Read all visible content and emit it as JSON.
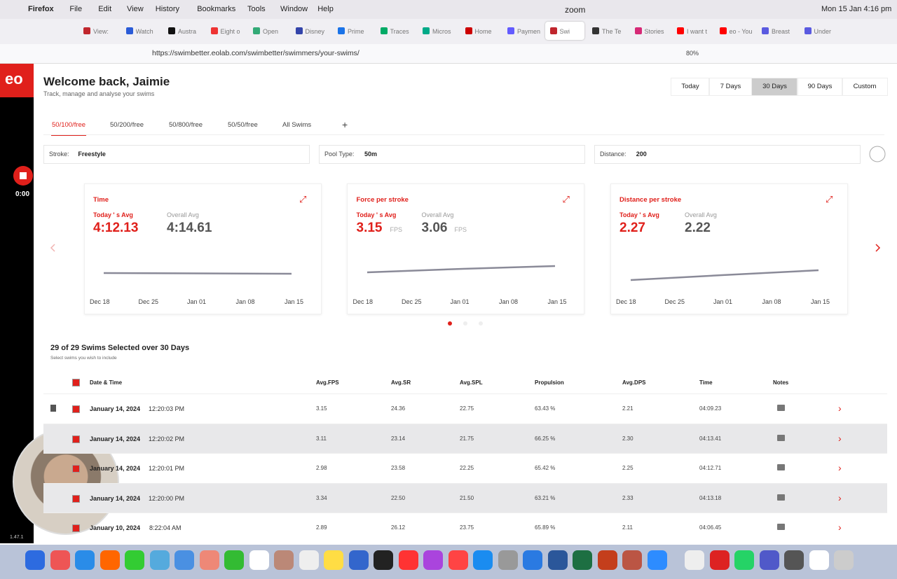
{
  "menubar": {
    "items": [
      "Firefox",
      "File",
      "Edit",
      "View",
      "History",
      "Bookmarks",
      "Tools",
      "Window",
      "Help"
    ],
    "app": "zoom",
    "datetime": "Mon 15 Jan 4:16 pm"
  },
  "browser_tabs": [
    "View:",
    "Watch",
    "Austra",
    "Eight o",
    "Open",
    "Disney",
    "Prime",
    "Traces",
    "Micros",
    "Home",
    "Paymen",
    "Swi",
    "The Te",
    "Stories",
    "I want t",
    "eo - You",
    "Breast",
    "Under"
  ],
  "url": "https://swimbetter.eolab.com/swimbetter/swimmers/your-swims/",
  "zoom": "80%",
  "sidebar": {
    "logo": "eo",
    "timer": "0:00",
    "version": "1.47.1"
  },
  "header": {
    "title": "Welcome back, Jaimie",
    "subtitle": "Track, manage and analyse your swims"
  },
  "ranges": [
    "Today",
    "7 Days",
    "30 Days",
    "90 Days",
    "Custom"
  ],
  "event_tabs": [
    "50/100/free",
    "50/200/free",
    "50/800/free",
    "50/50/free",
    "All Swims",
    "+"
  ],
  "filters": [
    {
      "label": "Stroke:",
      "value": "Freestyle"
    },
    {
      "label": "Pool Type:",
      "value": "50m"
    },
    {
      "label": "Distance:",
      "value": "200"
    }
  ],
  "sparkline_dates": [
    "Dec 18",
    "Dec 25",
    "Jan 01",
    "Jan 08",
    "Jan 15"
  ],
  "cards": [
    {
      "title": "Time",
      "today_label": "Today ' s Avg",
      "today": "4:12.13",
      "overall_label": "Overall Avg",
      "overall": "4:14.61"
    },
    {
      "title": "Force per stroke",
      "today_label": "Today ' s Avg",
      "today": "3.15",
      "overall_label": "Overall Avg",
      "overall": "3.06",
      "unit": "FPS"
    },
    {
      "title": "Distance per stroke",
      "today_label": "Today ' s Avg",
      "today": "2.27",
      "overall_label": "Overall Avg",
      "overall": "2.22"
    }
  ],
  "swims": {
    "title": "29 of 29 Swims Selected over 30 Days",
    "subtitle": "Select swims you wish to include",
    "columns": [
      "Date & Time",
      "Avg.FPS",
      "Avg.SR",
      "Avg.SPL",
      "Propulsion",
      "Avg.DPS",
      "Time",
      "Notes"
    ],
    "rows": [
      [
        "January 14, 2024",
        "12:20:03 PM",
        "3.15",
        "24.36",
        "22.75",
        "63.43 %",
        "2.21",
        "04:09.23"
      ],
      [
        "January 14, 2024",
        "12:20:02 PM",
        "3.11",
        "23.14",
        "21.75",
        "66.25 %",
        "2.30",
        "04:13.41"
      ],
      [
        "January 14, 2024",
        "12:20:01 PM",
        "2.98",
        "23.58",
        "22.25",
        "65.42 %",
        "2.25",
        "04:12.71"
      ],
      [
        "January 14, 2024",
        "12:20:00 PM",
        "3.34",
        "22.50",
        "21.50",
        "63.21 %",
        "2.33",
        "04:13.18"
      ],
      [
        "January 10, 2024",
        "8:22:04 AM",
        "2.89",
        "26.12",
        "23.75",
        "65.89 %",
        "2.11",
        "04:06.45"
      ]
    ]
  }
}
